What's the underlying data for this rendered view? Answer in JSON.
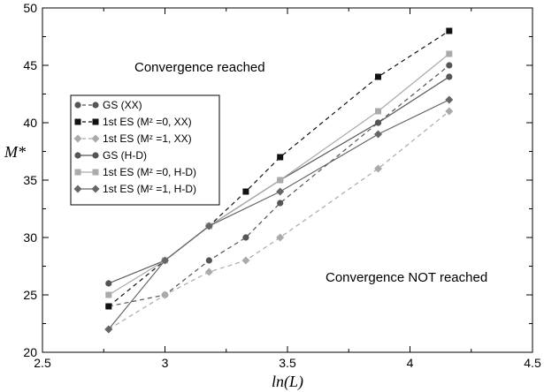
{
  "chart_data": {
    "type": "line",
    "xlabel": "ln(L)",
    "ylabel": "M*",
    "xlim": [
      2.5,
      4.5
    ],
    "ylim": [
      20,
      50
    ],
    "x_ticks": [
      "2.5",
      "3",
      "3.5",
      "4",
      "4.5"
    ],
    "y_ticks": [
      "20",
      "25",
      "30",
      "35",
      "40",
      "45",
      "50"
    ],
    "grid": false,
    "legend_position": "left",
    "annotations": [
      "Convergence reached",
      "Convergence NOT reached"
    ],
    "series": [
      {
        "name": "GS (XX)",
        "style": "dashed",
        "marker": "circle",
        "color": "#555555",
        "x": [
          2.77,
          3.0,
          3.18,
          3.33,
          3.47,
          3.87,
          4.16
        ],
        "y": [
          24,
          25,
          28,
          30,
          33,
          40,
          45
        ]
      },
      {
        "name": "1st ES (Mᶻ =0, XX)",
        "style": "dashed",
        "marker": "square",
        "color": "#111111",
        "x": [
          2.77,
          3.0,
          3.18,
          3.33,
          3.47,
          3.87,
          4.16
        ],
        "y": [
          24,
          28,
          31,
          34,
          37,
          44,
          48
        ]
      },
      {
        "name": "1st ES (Mᶻ =1, XX)",
        "style": "dashed",
        "marker": "diamond",
        "color": "#aaaaaa",
        "x": [
          2.77,
          3.0,
          3.18,
          3.33,
          3.47,
          3.87,
          4.16
        ],
        "y": [
          22,
          25,
          27,
          28,
          30,
          36,
          41
        ]
      },
      {
        "name": "GS (H-D)",
        "style": "solid",
        "marker": "circle",
        "color": "#555555",
        "x": [
          2.77,
          3.0,
          3.18,
          3.47,
          3.87,
          4.16
        ],
        "y": [
          26,
          28,
          31,
          35,
          40,
          44
        ]
      },
      {
        "name": "1st ES (Mᶻ =0, H-D)",
        "style": "solid",
        "marker": "square",
        "color": "#aaaaaa",
        "x": [
          2.77,
          3.0,
          3.18,
          3.47,
          3.87,
          4.16
        ],
        "y": [
          25,
          28,
          31,
          35,
          41,
          46
        ]
      },
      {
        "name": "1st ES (Mᶻ =1, H-D)",
        "style": "solid",
        "marker": "diamond",
        "color": "#666666",
        "x": [
          2.77,
          3.0,
          3.18,
          3.47,
          3.87,
          4.16
        ],
        "y": [
          22,
          28,
          31,
          34,
          39,
          42
        ]
      }
    ]
  }
}
